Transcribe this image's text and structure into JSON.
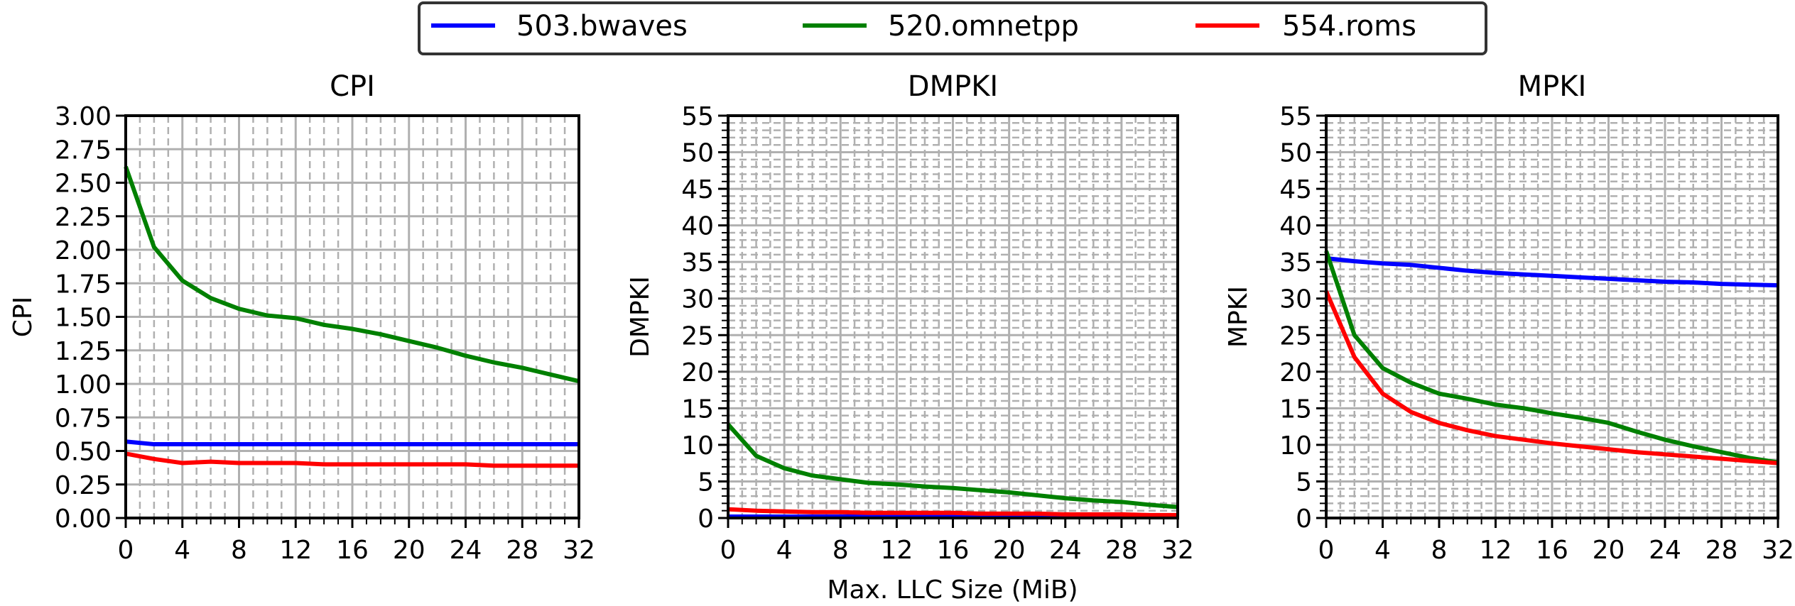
{
  "legend": {
    "items": [
      {
        "label": "503.bwaves",
        "color": "#0000ff"
      },
      {
        "label": "520.omnetpp",
        "color": "#008000"
      },
      {
        "label": "554.roms",
        "color": "#ff0000"
      }
    ]
  },
  "xlabel": "Max. LLC Size (MiB)",
  "chart_data": [
    {
      "type": "line",
      "title": "CPI",
      "xlabel": "Max. LLC Size (MiB)",
      "ylabel": "CPI",
      "x": [
        0,
        2,
        4,
        6,
        8,
        10,
        12,
        14,
        16,
        18,
        20,
        22,
        24,
        26,
        28,
        30,
        32
      ],
      "xlim": [
        0,
        32
      ],
      "xticks": [
        "0",
        "4",
        "8",
        "12",
        "16",
        "20",
        "24",
        "28",
        "32"
      ],
      "ylim": [
        0,
        3
      ],
      "yticks": [
        "0.00",
        "0.25",
        "0.50",
        "0.75",
        "1.00",
        "1.25",
        "1.50",
        "1.75",
        "2.00",
        "2.25",
        "2.50",
        "2.75",
        "3.00"
      ],
      "grid": {
        "major_x": 4,
        "minor_x": 1,
        "major_y": 0.25,
        "minor_y": null
      },
      "series": [
        {
          "name": "503.bwaves",
          "values": [
            0.57,
            0.55,
            0.55,
            0.55,
            0.55,
            0.55,
            0.55,
            0.55,
            0.55,
            0.55,
            0.55,
            0.55,
            0.55,
            0.55,
            0.55,
            0.55,
            0.55
          ]
        },
        {
          "name": "520.omnetpp",
          "values": [
            2.62,
            2.02,
            1.77,
            1.64,
            1.56,
            1.51,
            1.49,
            1.44,
            1.41,
            1.37,
            1.32,
            1.27,
            1.21,
            1.16,
            1.12,
            1.07,
            1.02
          ]
        },
        {
          "name": "554.roms",
          "values": [
            0.48,
            0.44,
            0.41,
            0.42,
            0.41,
            0.41,
            0.41,
            0.4,
            0.4,
            0.4,
            0.4,
            0.4,
            0.4,
            0.39,
            0.39,
            0.39,
            0.39
          ]
        }
      ]
    },
    {
      "type": "line",
      "title": "DMPKI",
      "xlabel": "Max. LLC Size (MiB)",
      "ylabel": "DMPKI",
      "x": [
        0,
        2,
        4,
        6,
        8,
        10,
        12,
        14,
        16,
        18,
        20,
        22,
        24,
        26,
        28,
        30,
        32
      ],
      "xlim": [
        0,
        32
      ],
      "xticks": [
        "0",
        "4",
        "8",
        "12",
        "16",
        "20",
        "24",
        "28",
        "32"
      ],
      "ylim": [
        0,
        55
      ],
      "yticks": [
        "0",
        "5",
        "10",
        "15",
        "20",
        "25",
        "30",
        "35",
        "40",
        "45",
        "50",
        "55"
      ],
      "grid": {
        "major_x": 4,
        "minor_x": 1,
        "major_y": 5,
        "minor_y": 1
      },
      "series": [
        {
          "name": "503.bwaves",
          "values": [
            0.2,
            0.2,
            0.2,
            0.2,
            0.2,
            0.2,
            0.2,
            0.2,
            0.2,
            0.2,
            0.2,
            0.2,
            0.2,
            0.2,
            0.2,
            0.2,
            0.2
          ]
        },
        {
          "name": "520.omnetpp",
          "values": [
            12.8,
            8.5,
            6.8,
            5.8,
            5.3,
            4.8,
            4.6,
            4.3,
            4.1,
            3.8,
            3.5,
            3.1,
            2.7,
            2.4,
            2.2,
            1.8,
            1.5
          ]
        },
        {
          "name": "554.roms",
          "values": [
            1.2,
            1.0,
            0.9,
            0.8,
            0.8,
            0.7,
            0.7,
            0.7,
            0.7,
            0.6,
            0.6,
            0.6,
            0.5,
            0.5,
            0.5,
            0.4,
            0.4
          ]
        }
      ]
    },
    {
      "type": "line",
      "title": "MPKI",
      "xlabel": "Max. LLC Size (MiB)",
      "ylabel": "MPKI",
      "x": [
        0,
        2,
        4,
        6,
        8,
        10,
        12,
        14,
        16,
        18,
        20,
        22,
        24,
        26,
        28,
        30,
        32
      ],
      "xlim": [
        0,
        32
      ],
      "xticks": [
        "0",
        "4",
        "8",
        "12",
        "16",
        "20",
        "24",
        "28",
        "32"
      ],
      "ylim": [
        0,
        55
      ],
      "yticks": [
        "0",
        "5",
        "10",
        "15",
        "20",
        "25",
        "30",
        "35",
        "40",
        "45",
        "50",
        "55"
      ],
      "grid": {
        "major_x": 4,
        "minor_x": 1,
        "major_y": 5,
        "minor_y": 1
      },
      "series": [
        {
          "name": "503.bwaves",
          "values": [
            35.5,
            35.1,
            34.8,
            34.6,
            34.2,
            33.8,
            33.5,
            33.3,
            33.1,
            32.9,
            32.7,
            32.5,
            32.3,
            32.2,
            32.0,
            31.9,
            31.8
          ]
        },
        {
          "name": "520.omnetpp",
          "values": [
            36.5,
            25.0,
            20.5,
            18.5,
            17.0,
            16.3,
            15.5,
            15.0,
            14.3,
            13.7,
            13.0,
            11.8,
            10.7,
            9.8,
            9.0,
            8.2,
            7.6
          ]
        },
        {
          "name": "554.roms",
          "values": [
            31.0,
            22.0,
            17.0,
            14.5,
            13.0,
            12.0,
            11.2,
            10.7,
            10.2,
            9.8,
            9.4,
            9.0,
            8.7,
            8.4,
            8.1,
            7.8,
            7.5
          ]
        }
      ]
    }
  ]
}
